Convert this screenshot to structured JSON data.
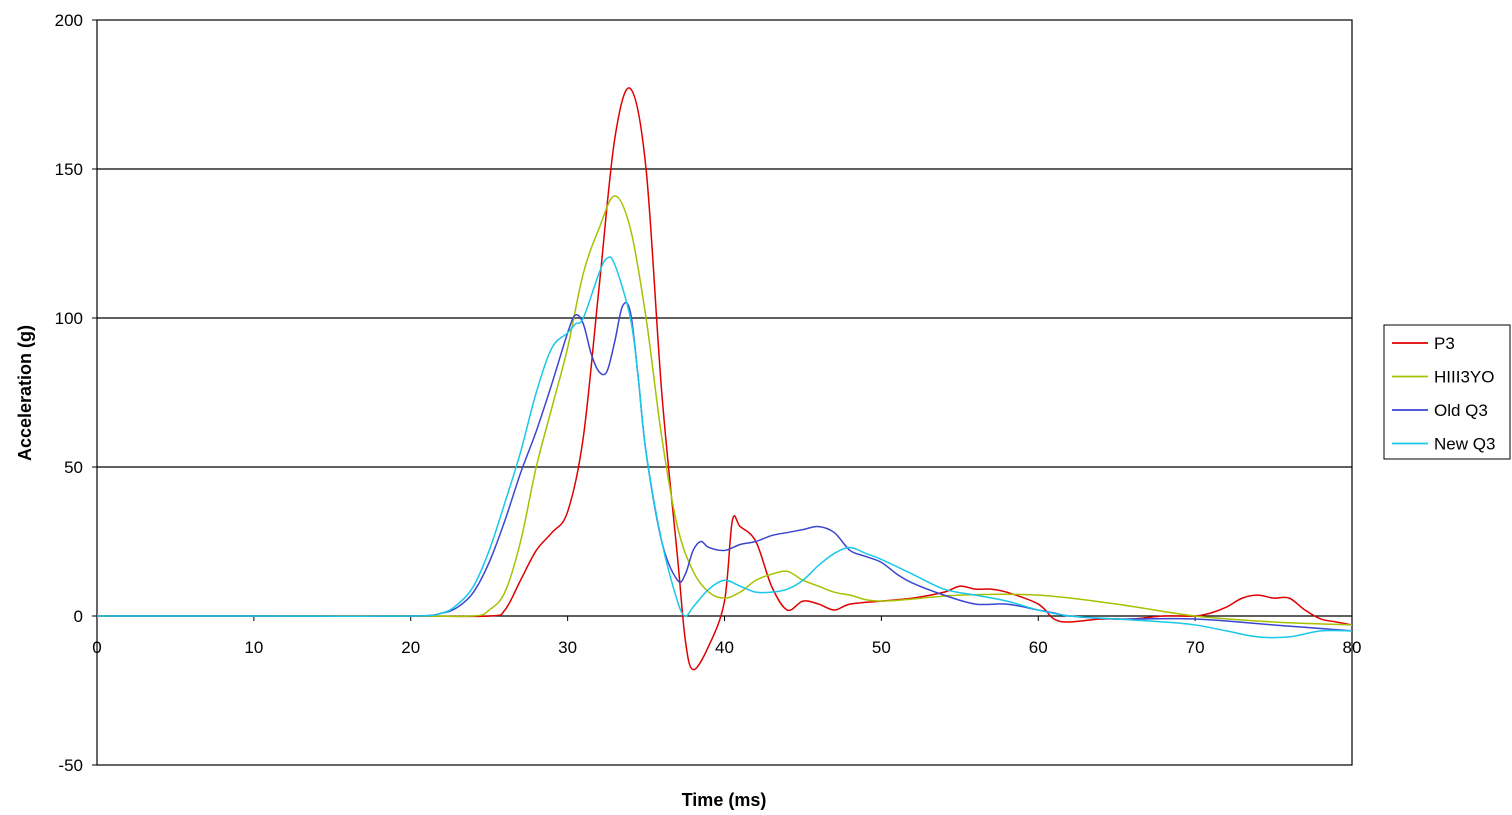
{
  "chart_data": {
    "type": "line",
    "title": "",
    "xlabel": "Time (ms)",
    "ylabel": "Acceleration (g)",
    "xlim": [
      0,
      80
    ],
    "ylim": [
      -50,
      200
    ],
    "x_ticks": [
      0,
      10,
      20,
      30,
      40,
      50,
      60,
      70,
      80
    ],
    "y_ticks": [
      -50,
      0,
      50,
      100,
      150,
      200
    ],
    "grid": {
      "horizontal": true,
      "vertical": false
    },
    "legend_position": "right",
    "series": [
      {
        "name": "P3",
        "color": "#e00000",
        "x": [
          0,
          10,
          20,
          25,
          26,
          27,
          28,
          29,
          30,
          31,
          32,
          33,
          34,
          35,
          36,
          37,
          37.5,
          38,
          39,
          40,
          40.5,
          41,
          42,
          43,
          44,
          45,
          46,
          47,
          48,
          50,
          52,
          54,
          55,
          56,
          57,
          58,
          60,
          61,
          62,
          64,
          66,
          68,
          70,
          71,
          72,
          73,
          74,
          75,
          76,
          77,
          78,
          79,
          80
        ],
        "y": [
          0,
          0,
          0,
          0,
          2,
          12,
          22,
          28,
          35,
          60,
          110,
          160,
          177,
          150,
          75,
          20,
          -8,
          -18,
          -10,
          5,
          32,
          30,
          25,
          10,
          2,
          5,
          4,
          2,
          4,
          5,
          6,
          8,
          10,
          9,
          9,
          8,
          4,
          -1,
          -2,
          -1,
          -1,
          0,
          0,
          1,
          3,
          6,
          7,
          6,
          6,
          2,
          -1,
          -2,
          -3
        ]
      },
      {
        "name": "HIII3YO",
        "color": "#a8c000",
        "x": [
          0,
          10,
          20,
          24,
          25,
          26,
          27,
          28,
          29,
          30,
          31,
          32,
          33,
          34,
          35,
          36,
          37,
          38,
          39,
          40,
          41,
          42,
          43,
          44,
          45,
          46,
          47,
          48,
          50,
          55,
          60,
          65,
          70,
          75,
          80
        ],
        "y": [
          0,
          0,
          0,
          0,
          2,
          8,
          25,
          50,
          70,
          90,
          115,
          130,
          141,
          130,
          100,
          60,
          30,
          15,
          8,
          6,
          8,
          12,
          14,
          15,
          12,
          10,
          8,
          7,
          5,
          7,
          7,
          4,
          0,
          -2,
          -3
        ]
      },
      {
        "name": "Old Q3",
        "color": "#3a46d0",
        "x": [
          0,
          10,
          20,
          22,
          23,
          24,
          25,
          26,
          27,
          28,
          29,
          30,
          30.5,
          31,
          31.5,
          32,
          32.5,
          33,
          33.5,
          34,
          34.5,
          35,
          36,
          37,
          37.5,
          38,
          38.5,
          39,
          40,
          41,
          42,
          43,
          44,
          45,
          46,
          47,
          48,
          49,
          50,
          51,
          52,
          54,
          56,
          58,
          60,
          61,
          62,
          65,
          70,
          75,
          80
        ],
        "y": [
          0,
          0,
          0,
          1,
          3,
          8,
          18,
          32,
          48,
          62,
          78,
          95,
          101,
          98,
          88,
          82,
          82,
          92,
          104,
          102,
          80,
          55,
          25,
          12,
          14,
          22,
          25,
          23,
          22,
          24,
          25,
          27,
          28,
          29,
          30,
          28,
          22,
          20,
          18,
          14,
          11,
          7,
          4,
          4,
          2,
          1,
          0,
          -1,
          -1,
          -3,
          -5
        ]
      },
      {
        "name": "New Q3",
        "color": "#18c8e8",
        "x": [
          0,
          10,
          20,
          22,
          23,
          24,
          25,
          26,
          27,
          28,
          29,
          30,
          30.5,
          31,
          32,
          32.5,
          33,
          34,
          34.5,
          35,
          36,
          37,
          37.5,
          38,
          39,
          40,
          41,
          42,
          43,
          44,
          45,
          46,
          47,
          48,
          49,
          50,
          52,
          54,
          56,
          58,
          60,
          62,
          65,
          68,
          70,
          72,
          74,
          76,
          78,
          80
        ],
        "y": [
          0,
          0,
          0,
          1,
          4,
          10,
          22,
          38,
          55,
          75,
          90,
          95,
          98,
          100,
          115,
          120,
          118,
          100,
          80,
          55,
          25,
          5,
          0,
          3,
          9,
          12,
          10,
          8,
          8,
          9,
          12,
          17,
          21,
          23,
          21,
          19,
          14,
          9,
          7,
          5,
          2,
          0,
          -1,
          -2,
          -3,
          -5,
          -7,
          -7,
          -5,
          -5
        ]
      }
    ]
  }
}
